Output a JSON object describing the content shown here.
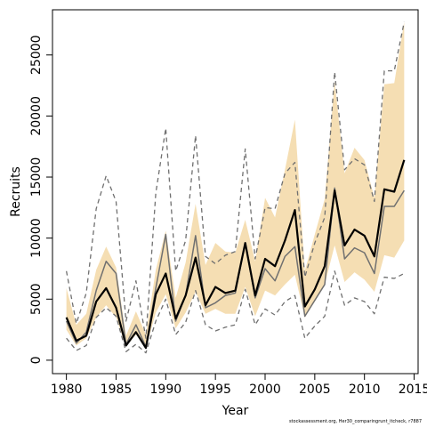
{
  "chart_data": {
    "type": "line",
    "xlabel": "Year",
    "ylabel": "Recruits",
    "xlim": [
      1978.6,
      2015.4
    ],
    "ylim": [
      -1100,
      28700
    ],
    "x_ticks": [
      1980,
      1985,
      1990,
      1995,
      2000,
      2005,
      2010,
      2015
    ],
    "y_ticks": [
      0,
      5000,
      10000,
      15000,
      20000,
      25000
    ],
    "x": [
      1980,
      1981,
      1982,
      1983,
      1984,
      1985,
      1986,
      1987,
      1988,
      1989,
      1990,
      1991,
      1992,
      1993,
      1994,
      1995,
      1996,
      1997,
      1998,
      1999,
      2000,
      2001,
      2002,
      2003,
      2004,
      2005,
      2006,
      2007,
      2008,
      2009,
      2010,
      2011,
      2012,
      2013,
      2014
    ],
    "series": [
      {
        "style": "band",
        "color": "#f5deb3",
        "lower": [
          2500,
          1200,
          1800,
          3500,
          4500,
          3500,
          1100,
          2100,
          1000,
          3900,
          5400,
          2600,
          3900,
          5600,
          3800,
          4200,
          3800,
          3800,
          6000,
          3600,
          5700,
          5300,
          6200,
          7000,
          3500,
          4800,
          6200,
          9400,
          6400,
          7200,
          6600,
          5600,
          8600,
          8400,
          9800
        ],
        "upper": [
          5900,
          2900,
          3800,
          7400,
          9300,
          7600,
          2000,
          4000,
          2100,
          7400,
          10600,
          5100,
          8000,
          12800,
          7800,
          9600,
          8900,
          8800,
          11500,
          8100,
          13300,
          11700,
          15600,
          19700,
          7300,
          10300,
          13200,
          22800,
          15300,
          17400,
          16400,
          13300,
          22600,
          22700,
          27700
        ]
      },
      {
        "style": "dashed",
        "color": "#707070",
        "values": [
          7300,
          3000,
          5500,
          12400,
          15100,
          13000,
          3200,
          6500,
          1800,
          13700,
          19000,
          7300,
          9800,
          18400,
          8500,
          7900,
          8600,
          8900,
          17300,
          8300,
          12500,
          12400,
          15300,
          16200,
          6800,
          9600,
          11700,
          23600,
          15600,
          16500,
          16000,
          13000,
          23700,
          23700,
          27700
        ]
      },
      {
        "style": "dashed",
        "color": "#707070",
        "values": [
          1800,
          800,
          1200,
          3500,
          4300,
          3600,
          700,
          1300,
          600,
          3200,
          5000,
          2100,
          3100,
          5700,
          2900,
          2400,
          2700,
          2900,
          5800,
          2900,
          4200,
          3700,
          4800,
          5300,
          1800,
          2800,
          3600,
          7300,
          4500,
          5100,
          4800,
          3800,
          6800,
          6700,
          7100
        ]
      },
      {
        "style": "solid",
        "color": "#707070",
        "width": 1.5,
        "values": [
          3200,
          1400,
          2300,
          5700,
          8100,
          7100,
          1300,
          2900,
          1100,
          5900,
          10300,
          3200,
          5300,
          10200,
          4300,
          4700,
          5300,
          5500,
          9600,
          5100,
          7500,
          6500,
          8500,
          9300,
          3600,
          4900,
          6200,
          14100,
          8300,
          9200,
          8800,
          7100,
          12600,
          12600,
          13900
        ]
      },
      {
        "style": "solid",
        "color": "#000000",
        "width": 2.2,
        "values": [
          3500,
          1600,
          2000,
          4800,
          5900,
          4300,
          1200,
          2300,
          1000,
          5400,
          7100,
          3400,
          5300,
          8400,
          4500,
          6000,
          5500,
          5700,
          9600,
          5300,
          8300,
          7700,
          9800,
          12300,
          4400,
          5800,
          7700,
          13900,
          9400,
          10700,
          10200,
          8500,
          14000,
          13800,
          16400
        ]
      }
    ]
  },
  "footer": {
    "note": "stockassessment.org, Her30_comparingrunt_itcheck, r7887"
  }
}
